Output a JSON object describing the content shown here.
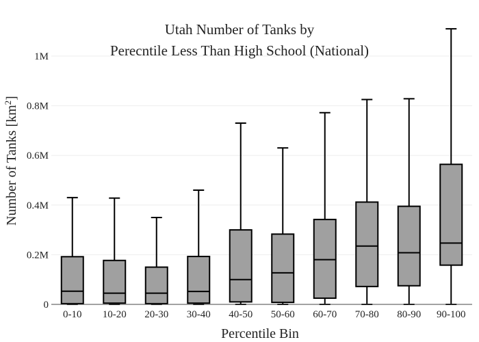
{
  "chart_data": {
    "type": "box",
    "title_lines": [
      "Utah Number of Tanks by",
      "Perecntile Less Than High School (National)"
    ],
    "xlabel": "Percentile Bin",
    "ylabel": "Number of Tanks  [km",
    "ylabel_sup": "2",
    "ylabel_end": "]",
    "ylim": [
      0,
      1100000
    ],
    "yticks": [
      {
        "value": 0,
        "label": "0"
      },
      {
        "value": 200000,
        "label": "0.2M"
      },
      {
        "value": 400000,
        "label": "0.4M"
      },
      {
        "value": 600000,
        "label": "0.6M"
      },
      {
        "value": 800000,
        "label": "0.8M"
      },
      {
        "value": 1000000,
        "label": "1M"
      }
    ],
    "grid": true,
    "categories": [
      "0-10",
      "10-20",
      "20-30",
      "30-40",
      "40-50",
      "50-60",
      "60-70",
      "70-80",
      "80-90",
      "90-100"
    ],
    "boxes": [
      {
        "min": 0,
        "q1": 3000,
        "median": 53000,
        "q3": 192000,
        "max": 430000
      },
      {
        "min": 0,
        "q1": 5000,
        "median": 45000,
        "q3": 177000,
        "max": 428000
      },
      {
        "min": 0,
        "q1": 3000,
        "median": 45000,
        "q3": 150000,
        "max": 350000
      },
      {
        "min": 0,
        "q1": 5000,
        "median": 52000,
        "q3": 193000,
        "max": 460000
      },
      {
        "min": 0,
        "q1": 10000,
        "median": 100000,
        "q3": 300000,
        "max": 730000
      },
      {
        "min": 0,
        "q1": 8000,
        "median": 127000,
        "q3": 283000,
        "max": 630000
      },
      {
        "min": 0,
        "q1": 25000,
        "median": 180000,
        "q3": 342000,
        "max": 772000
      },
      {
        "min": 0,
        "q1": 72000,
        "median": 235000,
        "q3": 412000,
        "max": 825000
      },
      {
        "min": 0,
        "q1": 75000,
        "median": 208000,
        "q3": 395000,
        "max": 828000
      },
      {
        "min": 0,
        "q1": 158000,
        "median": 247000,
        "q3": 564000,
        "max": 1110000
      }
    ],
    "box_color": "#a0a0a0",
    "line_color": "#000000"
  }
}
